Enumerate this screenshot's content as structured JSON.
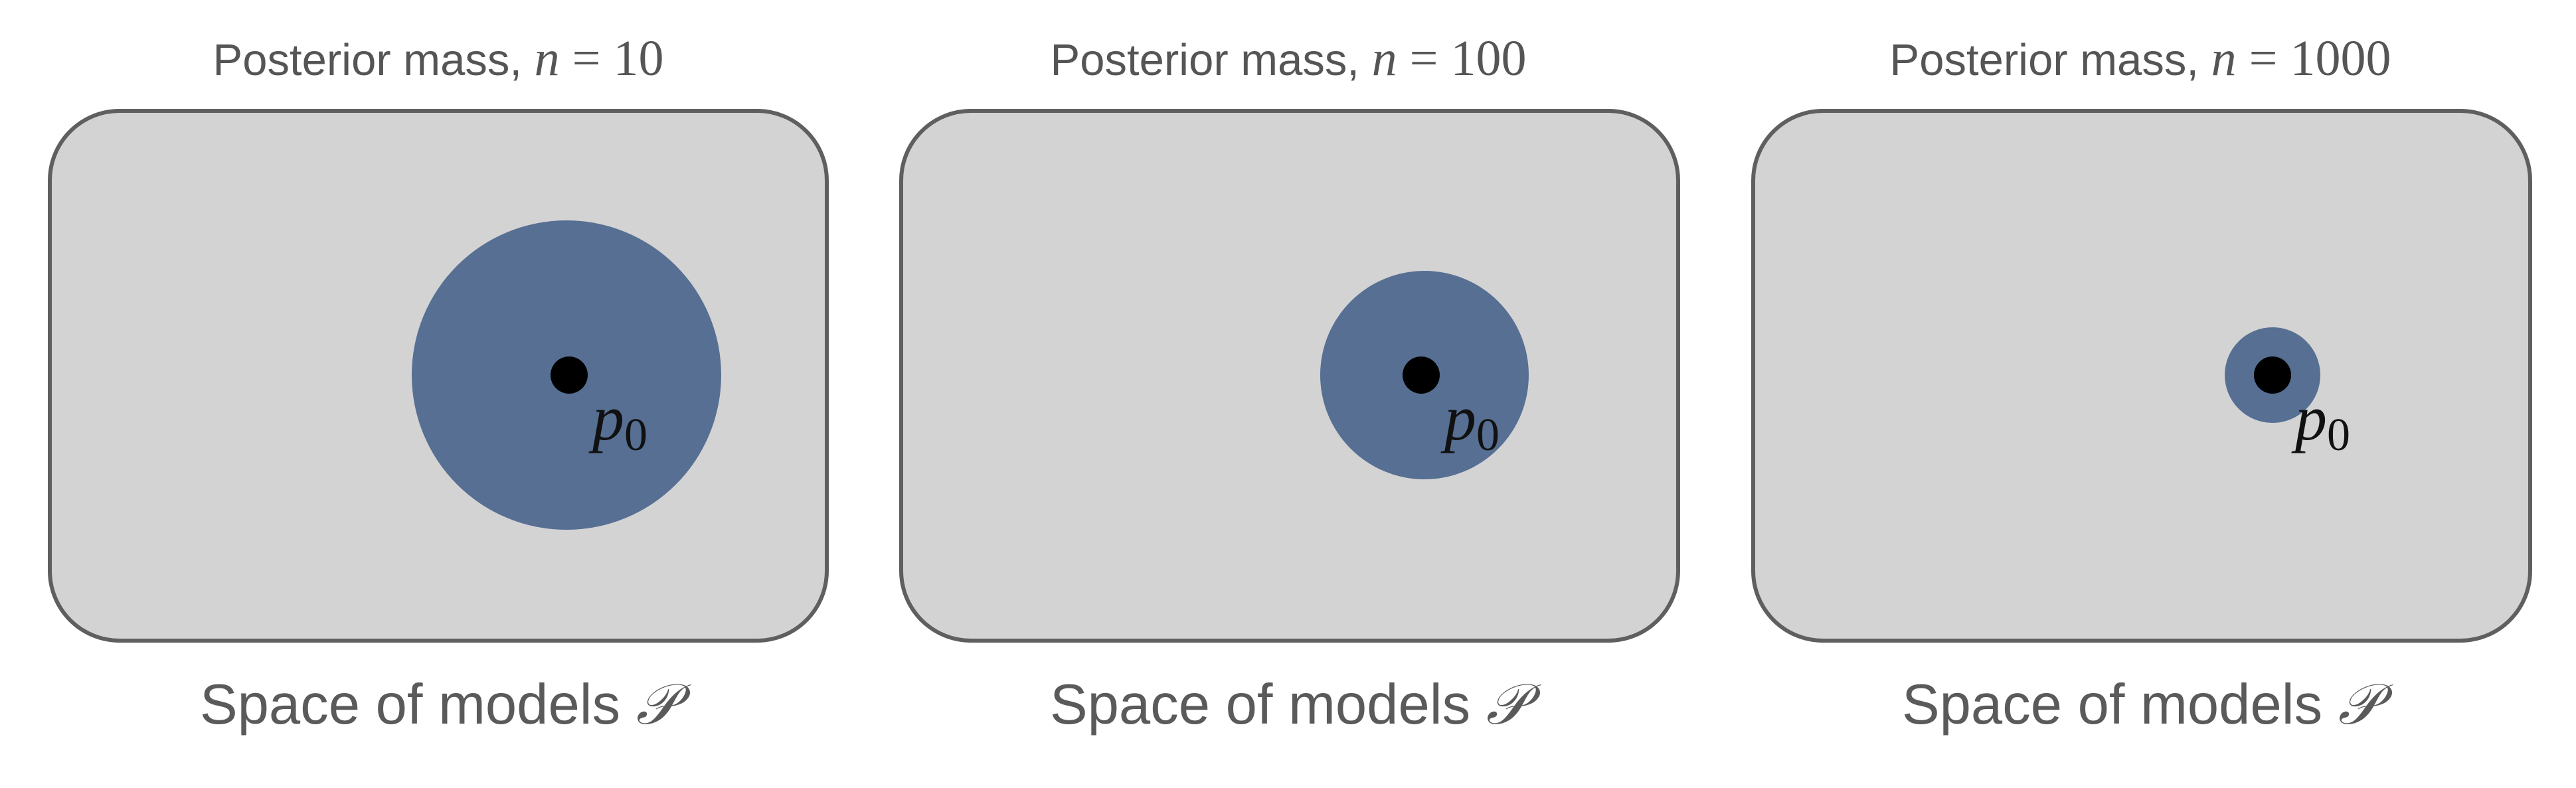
{
  "colors": {
    "space_fill": "#d3d3d3",
    "space_stroke": "#5f5f5f",
    "posterior_fill": "#566f93",
    "point_fill": "#000000",
    "text_gray": "#555555"
  },
  "panels": [
    {
      "title_prefix": "Posterior mass, ",
      "title_var": "n",
      "title_eq": " = ",
      "title_value": "10",
      "caption_text": "Space of models ",
      "caption_symbol": "𝒫",
      "point_label": "p",
      "point_sub": "0",
      "posterior_relative_radius": 1.0
    },
    {
      "title_prefix": "Posterior mass, ",
      "title_var": "n",
      "title_eq": " = ",
      "title_value": "100",
      "caption_text": "Space of models ",
      "caption_symbol": "𝒫",
      "point_label": "p",
      "point_sub": "0",
      "posterior_relative_radius": 0.68
    },
    {
      "title_prefix": "Posterior mass, ",
      "title_var": "n",
      "title_eq": " = ",
      "title_value": "1000",
      "caption_text": "Space of models ",
      "caption_symbol": "𝒫",
      "point_label": "p",
      "point_sub": "0",
      "posterior_relative_radius": 0.31
    }
  ]
}
